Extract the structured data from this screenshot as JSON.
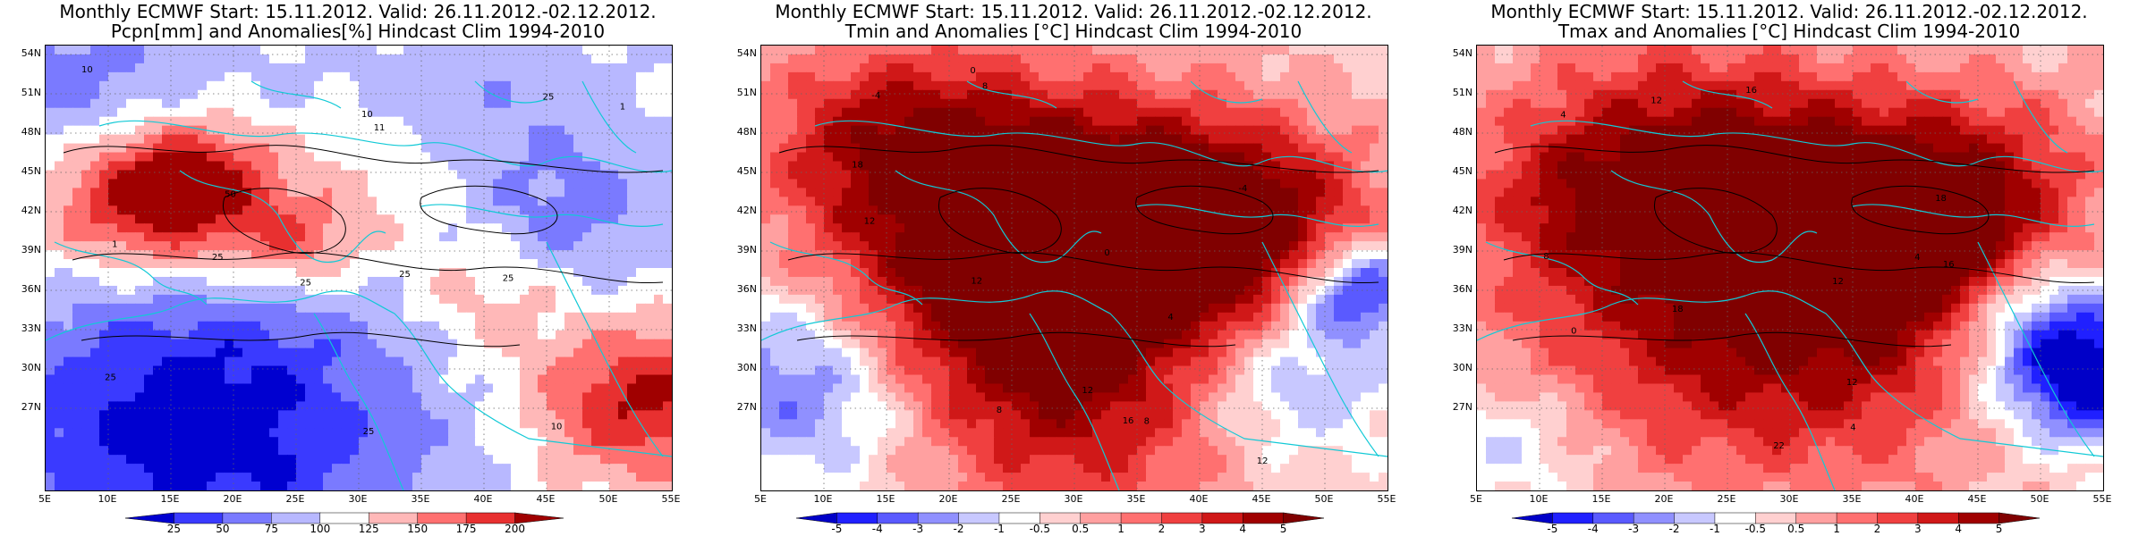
{
  "panels": [
    {
      "id": "pcpn",
      "title_line1": "Monthly ECMWF Start: 15.11.2012. Valid: 26.11.2012.-02.12.2012.",
      "title_line2": "Pcpn[mm] and Anomalies[%] Hindcast Clim 1994-2010",
      "palette": "precip",
      "colorbar_labels": [
        "25",
        "50",
        "75",
        "100",
        "125",
        "150",
        "175",
        "200"
      ],
      "contour_labels": [
        "10",
        "25",
        "25",
        "25",
        "25",
        "50",
        "25",
        "10",
        "10",
        "11",
        "25",
        "25",
        "1",
        "1"
      ],
      "colors": {
        "low": "#0000e0",
        "high": "#a00000"
      }
    },
    {
      "id": "tmin",
      "title_line1": "Monthly ECMWF Start: 15.11.2012. Valid: 26.11.2012.-02.12.2012.",
      "title_line2": "Tmin and Anomalies [°C] Hindcast Clim 1994-2010",
      "palette": "temp",
      "colorbar_labels": [
        "-5",
        "-4",
        "-3",
        "-2",
        "-1",
        "-0.5",
        "0.5",
        "1",
        "2",
        "3",
        "4",
        "5"
      ],
      "contour_labels": [
        "0",
        "-4",
        "8",
        "12",
        "12",
        "8",
        "4",
        "0",
        "12",
        "16",
        "18",
        "8",
        "12",
        "-4"
      ],
      "colors": {
        "low": "#0000e0",
        "high": "#c00000"
      }
    },
    {
      "id": "tmax",
      "title_line1": "Monthly ECMWF Start: 15.11.2012. Valid: 26.11.2012.-02.12.2012.",
      "title_line2": "Tmax and Anomalies [°C] Hindcast Clim 1994-2010",
      "palette": "temp",
      "colorbar_labels": [
        "-5",
        "-4",
        "-3",
        "-2",
        "-1",
        "-0.5",
        "0.5",
        "1",
        "2",
        "3",
        "4",
        "5"
      ],
      "contour_labels": [
        "0",
        "4",
        "4",
        "8",
        "12",
        "12",
        "16",
        "12",
        "18",
        "16",
        "18",
        "22",
        "4"
      ],
      "colors": {
        "low": "#0000e0",
        "high": "#c00000"
      }
    }
  ],
  "lat_labels": [
    "54N",
    "51N",
    "48N",
    "45N",
    "42N",
    "39N",
    "36N",
    "33N",
    "30N",
    "27N"
  ],
  "lon_labels": [
    "5E",
    "10E",
    "15E",
    "20E",
    "25E",
    "30E",
    "35E",
    "40E",
    "45E",
    "50E",
    "55E"
  ]
}
